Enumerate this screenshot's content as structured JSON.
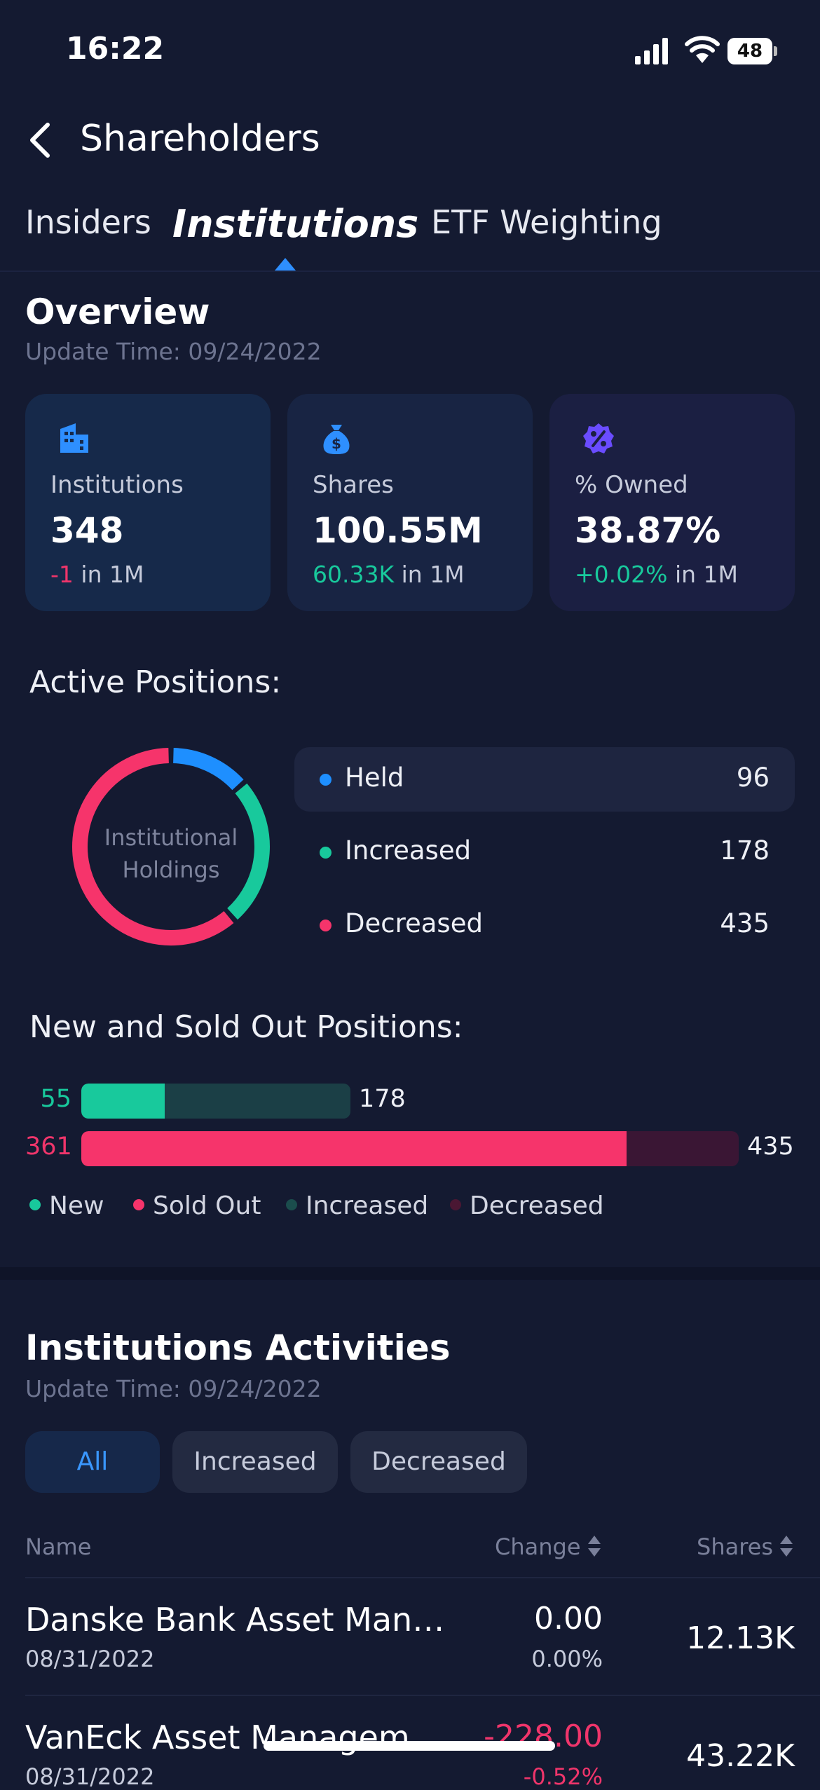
{
  "status": {
    "time": "16:22",
    "battery": "48"
  },
  "nav": {
    "title": "Shareholders"
  },
  "tabs": [
    {
      "label": "Insiders"
    },
    {
      "label": "Institutions"
    },
    {
      "label": "ETF Weighting"
    }
  ],
  "overview": {
    "title": "Overview",
    "update_time": "Update Time: 09/24/2022",
    "cards": [
      {
        "label": "Institutions",
        "value": "348",
        "change": "-1",
        "period": " in 1M",
        "change_color": "#f0356b",
        "bg": "#16294a",
        "icon": "building-icon"
      },
      {
        "label": "Shares",
        "value": "100.55M",
        "change": "60.33K",
        "period": " in 1M",
        "change_color": "#18c99c",
        "bg": "#182443",
        "icon": "money-bag-icon"
      },
      {
        "label": "% Owned",
        "value": "38.87%",
        "change": "+0.02%",
        "period": " in 1M",
        "change_color": "#18c99c",
        "bg": "#1b1f42",
        "icon": "percent-badge-icon"
      }
    ]
  },
  "active_positions": {
    "title": "Active Positions:",
    "center_label_line1": "Institutional",
    "center_label_line2": "Holdings",
    "items": [
      {
        "name": "Held",
        "value": 96,
        "color": "#1e8fff"
      },
      {
        "name": "Increased",
        "value": 178,
        "color": "#18c99c"
      },
      {
        "name": "Decreased",
        "value": 435,
        "color": "#f6346b"
      }
    ]
  },
  "new_sold": {
    "title": "New and Sold Out Positions:",
    "rows": [
      {
        "left": "55",
        "right": "178",
        "part": 55,
        "total": 178
      },
      {
        "left": "361",
        "right": "435",
        "part": 361,
        "total": 435
      }
    ],
    "legend": [
      {
        "label": "New",
        "color": "#18c99c"
      },
      {
        "label": "Sold Out",
        "color": "#f6346b"
      },
      {
        "label": "Increased",
        "color": "#1b4d4d"
      },
      {
        "label": "Decreased",
        "color": "#4a1733"
      }
    ]
  },
  "activities": {
    "title": "Institutions Activities",
    "update_time": "Update Time: 09/24/2022",
    "filters": [
      "All",
      "Increased",
      "Decreased"
    ],
    "columns": {
      "name": "Name",
      "change": "Change",
      "shares": "Shares"
    },
    "rows": [
      {
        "name": "Danske Bank Asset Man…",
        "date": "08/31/2022",
        "change": "0.00",
        "change_pct": "0.00%",
        "shares": "12.13K"
      },
      {
        "name": "VanEck Asset Managem…",
        "date": "08/31/2022",
        "change": "-228.00",
        "change_pct": "-0.52%",
        "shares": "43.22K"
      }
    ]
  }
}
